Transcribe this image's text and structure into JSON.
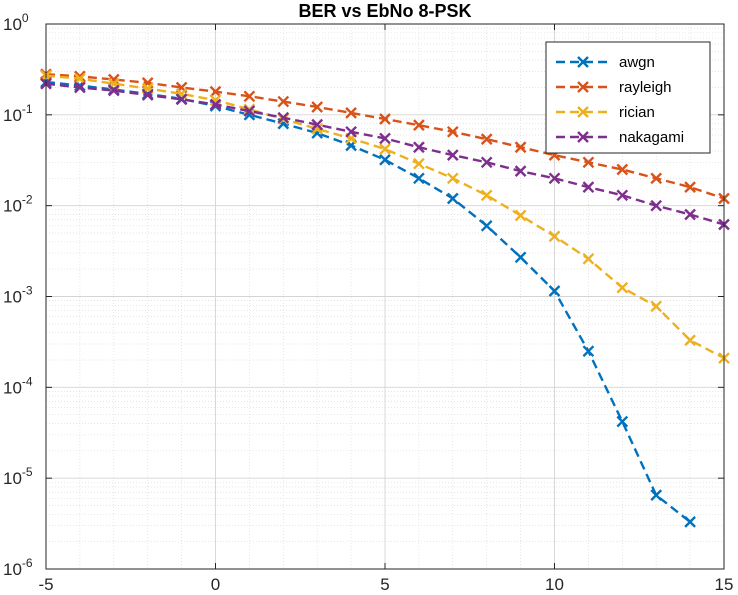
{
  "chart_data": {
    "type": "line",
    "title": "BER vs EbNo 8-PSK",
    "xlabel": "",
    "ylabel": "",
    "xlim": [
      -5,
      15
    ],
    "ylim": [
      1e-06,
      1
    ],
    "y_scale": "log",
    "grid": true,
    "minor_grid": true,
    "legend_position": "top-right",
    "x": [
      -5,
      -4,
      -3,
      -2,
      -1,
      0,
      1,
      2,
      3,
      4,
      5,
      6,
      7,
      8,
      9,
      10,
      11,
      12,
      13,
      14,
      15
    ],
    "x_ticks": [
      "-5",
      "0",
      "5",
      "10",
      "15"
    ],
    "y_tick_values": [
      1e-06,
      1e-05,
      0.0001,
      0.001,
      0.01,
      0.1,
      1
    ],
    "y_ticks": [
      {
        "base": "10",
        "exp": "-6"
      },
      {
        "base": "10",
        "exp": "-5"
      },
      {
        "base": "10",
        "exp": "-4"
      },
      {
        "base": "10",
        "exp": "-3"
      },
      {
        "base": "10",
        "exp": "-2"
      },
      {
        "base": "10",
        "exp": "-1"
      },
      {
        "base": "10",
        "exp": "0"
      }
    ],
    "series": [
      {
        "name": "awgn",
        "color": "#0072BD",
        "marker": "x",
        "line": "dashed",
        "values": [
          0.23,
          0.21,
          0.19,
          0.17,
          0.15,
          0.125,
          0.1,
          0.08,
          0.063,
          0.046,
          0.032,
          0.02,
          0.012,
          0.006,
          0.0027,
          0.00115,
          0.00025,
          4.2e-05,
          6.5e-06,
          3.3e-06,
          null
        ]
      },
      {
        "name": "rayleigh",
        "color": "#D95319",
        "marker": "x",
        "line": "dashed",
        "values": [
          0.28,
          0.265,
          0.245,
          0.225,
          0.2,
          0.18,
          0.16,
          0.14,
          0.122,
          0.105,
          0.09,
          0.077,
          0.065,
          0.054,
          0.044,
          0.036,
          0.03,
          0.025,
          0.02,
          0.016,
          0.012
        ]
      },
      {
        "name": "rician",
        "color": "#EDB120",
        "marker": "x",
        "line": "dashed",
        "values": [
          0.27,
          0.25,
          0.22,
          0.195,
          0.17,
          0.145,
          0.115,
          0.09,
          0.07,
          0.055,
          0.042,
          0.029,
          0.02,
          0.013,
          0.0078,
          0.0046,
          0.0026,
          0.00125,
          0.00078,
          0.00033,
          0.00021
        ]
      },
      {
        "name": "nakagami",
        "color": "#7E2F8E",
        "marker": "x",
        "line": "dashed",
        "values": [
          0.22,
          0.2,
          0.185,
          0.165,
          0.148,
          0.13,
          0.11,
          0.093,
          0.078,
          0.065,
          0.055,
          0.044,
          0.036,
          0.03,
          0.024,
          0.02,
          0.016,
          0.013,
          0.01,
          0.008,
          0.0062
        ]
      }
    ]
  }
}
